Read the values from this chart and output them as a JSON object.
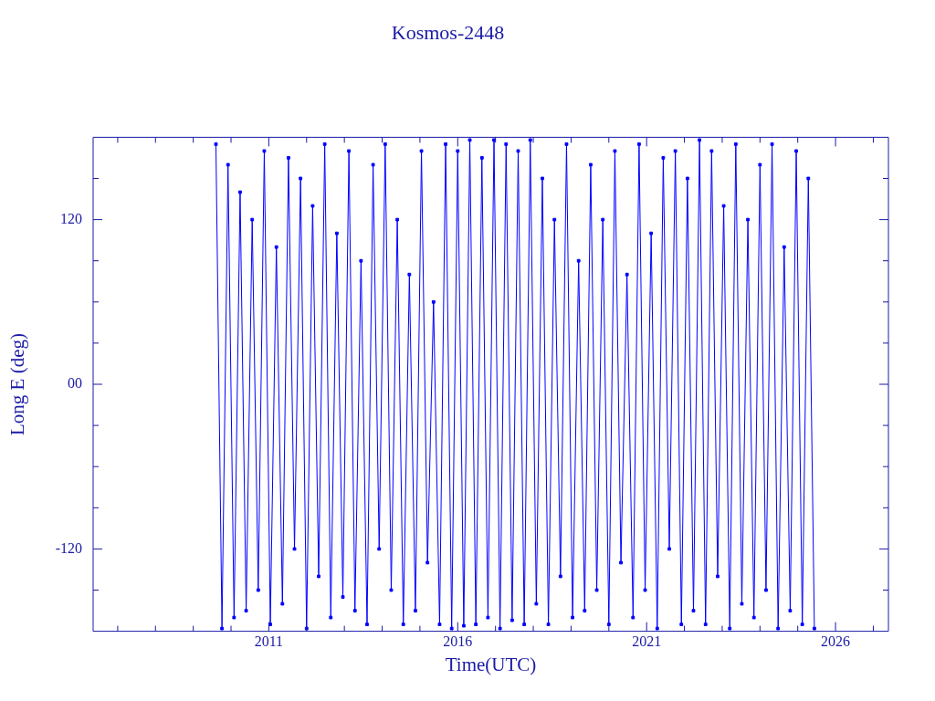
{
  "chart_data": {
    "type": "line",
    "title": "Kosmos-2448",
    "xlabel": "Time(UTC)",
    "ylabel": "Long E (deg)",
    "xlim": [
      2006.35,
      2027.4
    ],
    "xticks": [
      {
        "value": 2007,
        "label": null
      },
      {
        "value": 2008,
        "label": null
      },
      {
        "value": 2009,
        "label": null
      },
      {
        "value": 2010,
        "label": null
      },
      2011,
      {
        "value": 2012,
        "label": null
      },
      {
        "value": 2013,
        "label": null
      },
      {
        "value": 2014,
        "label": null
      },
      {
        "value": 2015,
        "label": null
      },
      2016,
      {
        "value": 2017,
        "label": null
      },
      {
        "value": 2018,
        "label": null
      },
      {
        "value": 2019,
        "label": null
      },
      {
        "value": 2020,
        "label": null
      },
      2021,
      {
        "value": 2022,
        "label": null
      },
      {
        "value": 2023,
        "label": null
      },
      {
        "value": 2024,
        "label": null
      },
      {
        "value": 2025,
        "label": null
      },
      2026,
      {
        "value": 2027,
        "label": null
      }
    ],
    "ylim": [
      -180,
      180
    ],
    "yticks": [
      {
        "value": -150,
        "label": null
      },
      -120,
      {
        "value": -90,
        "label": null
      },
      {
        "value": -60,
        "label": null
      },
      {
        "value": -30,
        "label": null
      },
      {
        "value": 0,
        "label": "00"
      },
      {
        "value": 30,
        "label": null
      },
      {
        "value": 60,
        "label": null
      },
      {
        "value": 90,
        "label": null
      },
      120,
      {
        "value": 150,
        "label": null
      }
    ],
    "grid": false,
    "legend": false,
    "marker": "square",
    "line_style": "solid",
    "series": [
      {
        "color": "#0000ff",
        "x": [
          2009.6,
          2009.76,
          2009.92,
          2010.08,
          2010.24,
          2010.4,
          2010.56,
          2010.72,
          2010.88,
          2011.04,
          2011.2,
          2011.36,
          2011.52,
          2011.68,
          2011.84,
          2012.0,
          2012.16,
          2012.32,
          2012.48,
          2012.64,
          2012.8,
          2012.96,
          2013.12,
          2013.28,
          2013.44,
          2013.6,
          2013.76,
          2013.92,
          2014.08,
          2014.24,
          2014.4,
          2014.56,
          2014.72,
          2014.88,
          2015.04,
          2015.2,
          2015.36,
          2015.52,
          2015.68,
          2015.84,
          2016.0,
          2016.16,
          2016.32,
          2016.48,
          2016.64,
          2016.8,
          2016.96,
          2017.12,
          2017.28,
          2017.44,
          2017.6,
          2017.76,
          2017.92,
          2018.08,
          2018.24,
          2018.4,
          2018.56,
          2018.72,
          2018.88,
          2019.04,
          2019.2,
          2019.36,
          2019.52,
          2019.68,
          2019.84,
          2020.0,
          2020.16,
          2020.32,
          2020.48,
          2020.64,
          2020.8,
          2020.96,
          2021.12,
          2021.28,
          2021.44,
          2021.6,
          2021.76,
          2021.92,
          2022.08,
          2022.24,
          2022.4,
          2022.56,
          2022.72,
          2022.88,
          2023.04,
          2023.2,
          2023.36,
          2023.52,
          2023.68,
          2023.84,
          2024.0,
          2024.16,
          2024.32,
          2024.48,
          2024.64,
          2024.8,
          2024.96,
          2025.12,
          2025.28,
          2025.44
        ],
        "values": [
          175,
          -178,
          160,
          -170,
          140,
          -165,
          120,
          -150,
          170,
          -175,
          100,
          -160,
          165,
          -120,
          150,
          -178,
          130,
          -140,
          175,
          -170,
          110,
          -155,
          170,
          -165,
          90,
          -175,
          160,
          -120,
          175,
          -150,
          120,
          -175,
          80,
          -165,
          170,
          -130,
          60,
          -175,
          175,
          -178,
          170,
          -176,
          178,
          -175,
          165,
          -170,
          178,
          -178,
          175,
          -172,
          170,
          -175,
          178,
          -160,
          150,
          -175,
          120,
          -140,
          175,
          -170,
          90,
          -165,
          160,
          -150,
          120,
          -175,
          170,
          -130,
          80,
          -170,
          175,
          -150,
          110,
          -178,
          165,
          -120,
          170,
          -175,
          150,
          -165,
          178,
          -175,
          170,
          -140,
          130,
          -178,
          175,
          -160,
          120,
          -170,
          160,
          -150,
          175,
          -178,
          100,
          -165,
          170,
          -175,
          150,
          -178
        ]
      }
    ]
  }
}
